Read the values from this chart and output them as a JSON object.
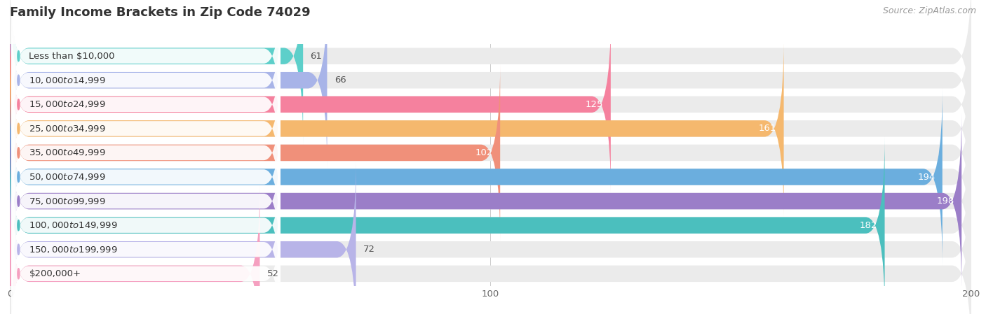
{
  "title": "Family Income Brackets in Zip Code 74029",
  "source": "Source: ZipAtlas.com",
  "categories": [
    "Less than $10,000",
    "$10,000 to $14,999",
    "$15,000 to $24,999",
    "$25,000 to $34,999",
    "$35,000 to $49,999",
    "$50,000 to $74,999",
    "$75,000 to $99,999",
    "$100,000 to $149,999",
    "$150,000 to $199,999",
    "$200,000+"
  ],
  "values": [
    61,
    66,
    125,
    161,
    102,
    194,
    198,
    182,
    72,
    52
  ],
  "bar_colors": [
    "#5DCFCA",
    "#A8B4E8",
    "#F5819E",
    "#F5B86E",
    "#F0907A",
    "#6BAEDE",
    "#9B7EC8",
    "#4BBFBE",
    "#B8B4E8",
    "#F5A0C0"
  ],
  "value_inside_color": "#ffffff",
  "value_outside_color": "#555555",
  "value_threshold": 80,
  "xlim_max": 200,
  "background_color": "#ffffff",
  "bar_bg_color": "#ebebeb",
  "row_bg_color": "#f5f5f5",
  "title_fontsize": 13,
  "label_fontsize": 9.5,
  "value_fontsize": 9.5,
  "source_fontsize": 9
}
